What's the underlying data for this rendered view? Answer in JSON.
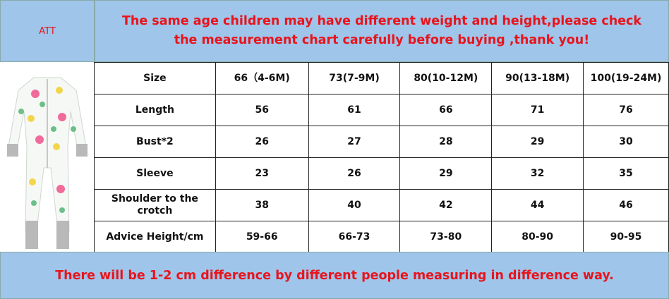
{
  "header": {
    "label": "ATT",
    "notice_lines": [
      "The same age children may have different weight and height,please check",
      "the measurement chart carefully before buying ,thank you!"
    ]
  },
  "table": {
    "rows": [
      [
        "Size",
        "66（4-6M)",
        "73(7-9M)",
        "80(10-12M)",
        "90(13-18M)",
        "100(19-24M)"
      ],
      [
        "Length",
        "56",
        "61",
        "66",
        "71",
        "76"
      ],
      [
        "Bust*2",
        "26",
        "27",
        "28",
        "29",
        "30"
      ],
      [
        "Sleeve",
        "23",
        "26",
        "29",
        "32",
        "35"
      ],
      [
        "Shoulder to the crotch",
        "38",
        "40",
        "42",
        "44",
        "46"
      ],
      [
        "Advice Height/cm",
        "59-66",
        "66-73",
        "73-80",
        "80-90",
        "90-95"
      ]
    ]
  },
  "footer": {
    "notice": "There will be 1-2 cm difference by different people measuring in difference way."
  }
}
